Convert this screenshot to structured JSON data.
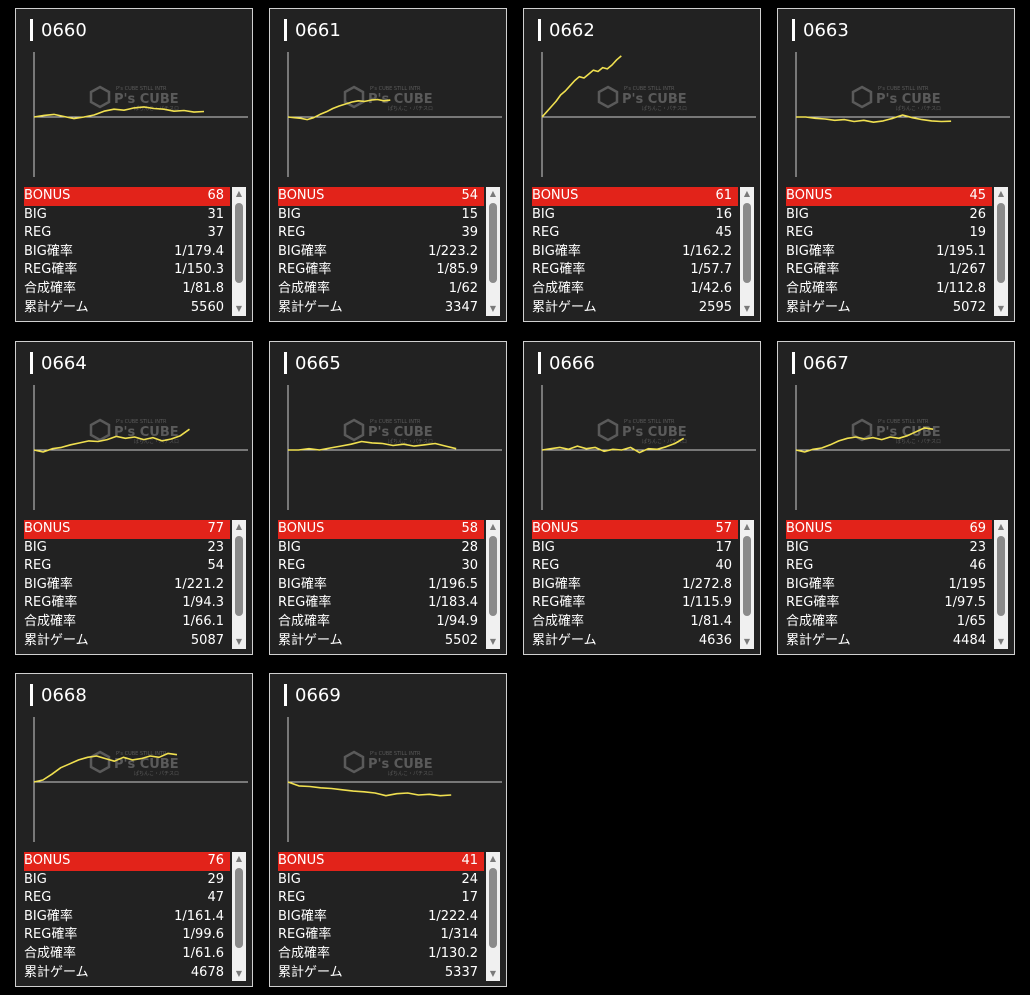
{
  "labels": {
    "bonus": "BONUS",
    "big": "BIG",
    "reg": "REG",
    "big_rate": "BIG確率",
    "reg_rate": "REG確率",
    "combined_rate": "合成確率",
    "total_games": "累計ゲーム"
  },
  "watermark": {
    "main": "P's CUBE",
    "top": "P's CUBE STILL INTR",
    "bottom": "ぱちんこ・パチスロ"
  },
  "colors": {
    "bonus_bar": "#e2231a",
    "graph_line": "#f0e050",
    "card_bg": "#222222"
  },
  "machines": [
    {
      "id": "0660",
      "bonus": "68",
      "big": "31",
      "reg": "37",
      "big_rate": "1/179.4",
      "reg_rate": "1/150.3",
      "combined_rate": "1/81.8",
      "total_games": "5560",
      "graph": [
        0,
        120,
        200,
        40,
        -120,
        0,
        150,
        450,
        600,
        520,
        700,
        780,
        650,
        600,
        450,
        500,
        380,
        420
      ]
    },
    {
      "id": "0661",
      "bonus": "54",
      "big": "15",
      "reg": "39",
      "big_rate": "1/223.2",
      "reg_rate": "1/85.9",
      "combined_rate": "1/62",
      "total_games": "3347",
      "graph": [
        0,
        -50,
        -100,
        -200,
        -50,
        200,
        400,
        650,
        850,
        1000,
        1150,
        1250,
        1200,
        1300,
        1350,
        1250,
        1300
      ]
    },
    {
      "id": "0662",
      "bonus": "61",
      "big": "16",
      "reg": "45",
      "big_rate": "1/162.2",
      "reg_rate": "1/57.7",
      "combined_rate": "1/42.6",
      "total_games": "2595",
      "graph": [
        0,
        400,
        800,
        1200,
        1700,
        2000,
        2400,
        2800,
        3100,
        3000,
        3300,
        3600,
        3500,
        3800,
        3700,
        4000,
        4400,
        4700
      ]
    },
    {
      "id": "0663",
      "bonus": "45",
      "big": "26",
      "reg": "19",
      "big_rate": "1/195.1",
      "reg_rate": "1/267",
      "combined_rate": "1/112.8",
      "total_games": "5072",
      "graph": [
        0,
        0,
        -100,
        -150,
        -250,
        -200,
        -350,
        -250,
        -400,
        -300,
        -100,
        150,
        -50,
        -200,
        -300,
        -350,
        -320
      ]
    },
    {
      "id": "0664",
      "bonus": "77",
      "big": "23",
      "reg": "54",
      "big_rate": "1/221.2",
      "reg_rate": "1/94.3",
      "combined_rate": "1/66.1",
      "total_games": "5087",
      "graph": [
        0,
        -150,
        100,
        200,
        400,
        550,
        700,
        650,
        800,
        1050,
        900,
        1000,
        800,
        950,
        700,
        850,
        1100,
        1600
      ]
    },
    {
      "id": "0665",
      "bonus": "58",
      "big": "28",
      "reg": "30",
      "big_rate": "1/196.5",
      "reg_rate": "1/183.4",
      "combined_rate": "1/94.9",
      "total_games": "5502",
      "graph": [
        0,
        0,
        100,
        0,
        150,
        300,
        450,
        650,
        550,
        500,
        350,
        450,
        300,
        400,
        500,
        300,
        100
      ]
    },
    {
      "id": "0666",
      "bonus": "57",
      "big": "17",
      "reg": "40",
      "big_rate": "1/272.8",
      "reg_rate": "1/115.9",
      "combined_rate": "1/81.4",
      "total_games": "4636",
      "graph": [
        0,
        100,
        200,
        50,
        300,
        100,
        200,
        -100,
        50,
        0,
        200,
        -200,
        100,
        50,
        250,
        500,
        900
      ]
    },
    {
      "id": "0667",
      "bonus": "69",
      "big": "23",
      "reg": "46",
      "big_rate": "1/195",
      "reg_rate": "1/97.5",
      "combined_rate": "1/65",
      "total_games": "4484",
      "graph": [
        0,
        -150,
        50,
        150,
        400,
        700,
        900,
        1000,
        850,
        950,
        800,
        1000,
        900,
        1100,
        1400,
        1700,
        1600
      ]
    },
    {
      "id": "0668",
      "bonus": "76",
      "big": "29",
      "reg": "47",
      "big_rate": "1/161.4",
      "reg_rate": "1/99.6",
      "combined_rate": "1/61.6",
      "total_games": "4678",
      "graph": [
        0,
        150,
        600,
        1100,
        1400,
        1700,
        1900,
        2000,
        1800,
        1600,
        1900,
        1700,
        1800,
        2000,
        1900,
        2200,
        2100
      ]
    },
    {
      "id": "0669",
      "bonus": "41",
      "big": "24",
      "reg": "17",
      "big_rate": "1/222.4",
      "reg_rate": "1/314",
      "combined_rate": "1/130.2",
      "total_games": "5337",
      "graph": [
        0,
        -300,
        -350,
        -450,
        -500,
        -600,
        -700,
        -750,
        -850,
        -1050,
        -900,
        -850,
        -1000,
        -950,
        -1050,
        -1000
      ]
    }
  ]
}
